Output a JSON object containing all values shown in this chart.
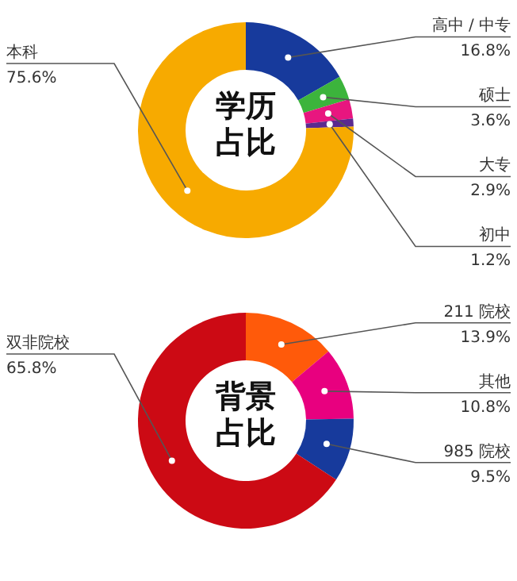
{
  "chart_data": [
    {
      "type": "donut",
      "title": "学历占比",
      "categories": [
        "高中 / 中专",
        "硕士",
        "大专",
        "初中",
        "本科"
      ],
      "values": [
        16.8,
        3.6,
        2.9,
        1.2,
        75.6
      ],
      "value_labels": [
        "16.8%",
        "3.6%",
        "2.9%",
        "1.2%",
        "75.6%"
      ],
      "colors": [
        "#173a9c",
        "#3cb43c",
        "#e8167f",
        "#5b2a8f",
        "#f7aa00"
      ]
    },
    {
      "type": "donut",
      "title": "背景占比",
      "categories": [
        "211 院校",
        "其他",
        "985 院校",
        "双非院校"
      ],
      "values": [
        13.9,
        10.8,
        9.5,
        65.8
      ],
      "value_labels": [
        "13.9%",
        "10.8%",
        "9.5%",
        "65.8%"
      ],
      "colors": [
        "#ff5a0a",
        "#e8007f",
        "#173a9c",
        "#cc0a14"
      ]
    }
  ]
}
